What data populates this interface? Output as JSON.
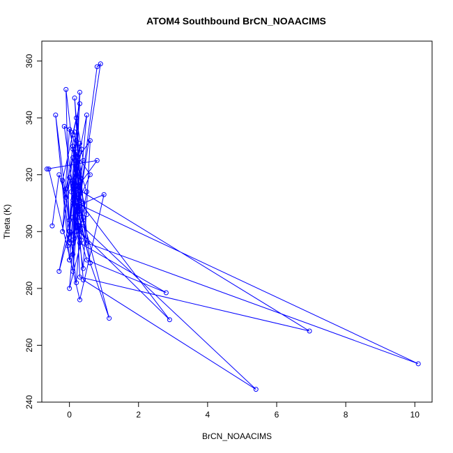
{
  "chart_data": {
    "type": "line",
    "title": "ATOM4 Southbound BrCN_NOAACIMS",
    "xlabel": "BrCN_NOAACIMS",
    "ylabel": "Theta (K)",
    "xlim": [
      -0.8,
      10.5
    ],
    "ylim": [
      240,
      367
    ],
    "xticks": [
      0,
      2,
      4,
      6,
      8,
      10
    ],
    "yticks": [
      240,
      260,
      280,
      300,
      320,
      340,
      360
    ],
    "grid": false,
    "legend": "none",
    "marker": "open-circle",
    "series": [
      {
        "color": "#0000ff",
        "x": [
          -0.5,
          -0.3,
          -0.1,
          0.1,
          0.3,
          0.0,
          -0.2,
          0.2,
          0.4,
          0.1,
          -0.3,
          0.0,
          0.2,
          0.5,
          0.3,
          0.1,
          -0.1,
          0.2,
          0.6,
          0.3,
          0.1,
          -0.2,
          0.0,
          0.3,
          0.15,
          0.4,
          0.2,
          0.0,
          -0.1,
          0.25,
          0.5,
          0.1,
          0.3,
          0.0,
          0.2,
          0.35,
          0.1,
          -0.05,
          0.2,
          0.4,
          0.1,
          0.3,
          0.0,
          0.2,
          0.5,
          0.2,
          0.05,
          0.3,
          0.1,
          0.25,
          0.8,
          0.9,
          0.3,
          0.1,
          0.2,
          0.6,
          0.4,
          0.0,
          0.2,
          0.3,
          2.8,
          0.5,
          0.2,
          0.1,
          6.95,
          0.3,
          0.2,
          10.1,
          0.5,
          0.1,
          5.4,
          0.4,
          0.2,
          2.9,
          0.3,
          0.1,
          1.15,
          0.6,
          0.2,
          1.0,
          0.3,
          -0.6,
          -0.65,
          0.8,
          0.2,
          0.1,
          0.4,
          0.0,
          -0.4,
          0.2,
          0.3,
          0.5,
          0.1,
          0.6,
          0.2,
          0.0,
          0.35,
          0.15,
          -0.15,
          0.25
        ],
        "y": [
          302,
          320,
          312,
          330,
          308,
          296,
          318,
          340,
          325,
          310,
          286,
          300,
          322,
          306,
          316,
          292,
          315,
          332,
          289,
          305,
          326,
          300,
          336,
          318,
          347,
          310,
          328,
          298,
          350,
          313,
          296,
          334,
          345,
          304,
          320,
          329,
          311,
          295,
          323,
          303,
          317,
          331,
          290,
          322,
          341,
          300,
          314,
          349,
          286,
          307,
          358,
          359,
          311,
          297,
          325,
          332,
          287,
          319,
          309,
          296,
          278.5,
          290,
          303,
          316,
          265,
          284,
          310,
          253.5,
          296,
          305,
          244.5,
          283,
          312,
          269,
          300,
          318,
          269.5,
          289,
          309,
          313,
          276,
          322,
          322,
          325,
          315,
          296,
          305,
          290,
          341,
          282,
          300,
          314,
          329,
          320,
          309,
          280,
          297,
          335,
          337,
          302
        ]
      }
    ]
  }
}
